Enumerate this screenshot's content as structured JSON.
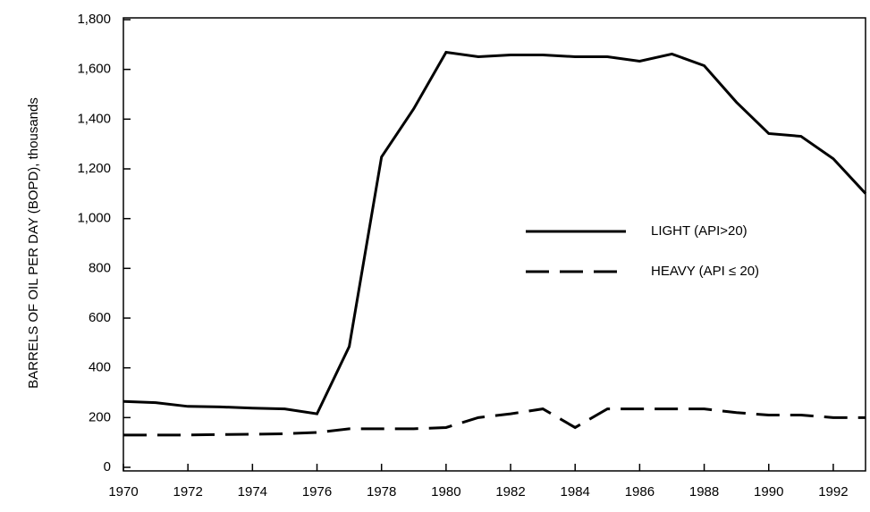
{
  "chart_data": {
    "type": "line",
    "y_label": "BARRELS OF OIL PER DAY (BOPD), thousands",
    "x": [
      1970,
      1971,
      1972,
      1973,
      1974,
      1975,
      1976,
      1977,
      1978,
      1979,
      1980,
      1981,
      1982,
      1983,
      1984,
      1985,
      1986,
      1987,
      1988,
      1989,
      1990,
      1991,
      1992,
      1993
    ],
    "series": [
      {
        "name": "LIGHT (API>20)",
        "color": "#000000",
        "dash": "solid",
        "values": [
          265,
          260,
          245,
          243,
          238,
          235,
          215,
          486,
          1248,
          1442,
          1669,
          1651,
          1658,
          1658,
          1651,
          1651,
          1633,
          1662,
          1615,
          1468,
          1342,
          1331,
          1241,
          1101
        ]
      },
      {
        "name": "HEAVY (API ≤ 20)",
        "color": "#000000",
        "dash": "dashed",
        "values": [
          130,
          130,
          130,
          132,
          133,
          135,
          140,
          155,
          155,
          155,
          160,
          200,
          215,
          235,
          160,
          235,
          235,
          235,
          235,
          220,
          210,
          210,
          200,
          200
        ]
      }
    ],
    "xlim": [
      1970,
      1993
    ],
    "xticks": [
      1970,
      1972,
      1974,
      1976,
      1978,
      1980,
      1982,
      1984,
      1986,
      1988,
      1990,
      1992
    ],
    "ylim": [
      0,
      1800
    ],
    "yticks": [
      0,
      200,
      400,
      600,
      800,
      {
        "value": 1000,
        "label": "1,000"
      },
      {
        "value": 1200,
        "label": "1,200"
      },
      {
        "value": 1400,
        "label": "1,400"
      },
      {
        "value": 1600,
        "label": "1,600"
      },
      {
        "value": 1800,
        "label": "1,800"
      }
    ],
    "grid": false
  }
}
